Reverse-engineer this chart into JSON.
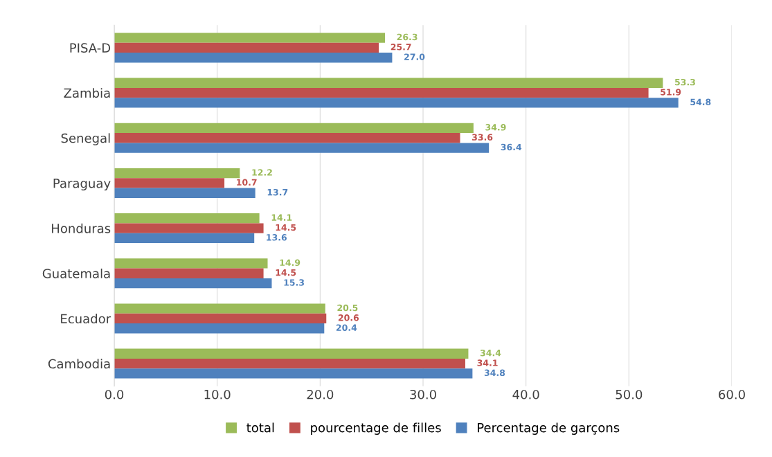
{
  "chart_data": {
    "type": "bar",
    "orientation": "horizontal",
    "categories": [
      "PISA-D",
      "Zambia",
      "Senegal",
      "Paraguay",
      "Honduras",
      "Guatemala",
      "Ecuador",
      "Cambodia"
    ],
    "series": [
      {
        "name": "total",
        "color": "#9bbb59",
        "values": [
          26.3,
          53.3,
          34.9,
          12.2,
          14.1,
          14.9,
          20.5,
          34.4
        ],
        "value_labels": [
          "26.3",
          "53.3",
          "34.9",
          "12.2",
          "14.1",
          "14.9",
          "20.5",
          "34.4"
        ]
      },
      {
        "name": "pourcentage de filles",
        "color": "#c0504d",
        "values": [
          25.7,
          51.9,
          33.6,
          10.7,
          14.5,
          14.5,
          20.6,
          34.1
        ],
        "value_labels": [
          "25.7",
          "51.9",
          "33.6",
          "10.7",
          "14.5",
          "14.5",
          "20.6",
          "34.1"
        ]
      },
      {
        "name": "Percentage de garçons",
        "color": "#4f81bd",
        "values": [
          27.0,
          54.8,
          36.4,
          13.7,
          13.6,
          15.3,
          20.4,
          34.8
        ],
        "value_labels": [
          "27.0",
          "54.8",
          "36.4",
          "13.7",
          "13.6",
          "15.3",
          "20.4",
          "34.8"
        ]
      }
    ],
    "xlim": [
      0,
      60
    ],
    "xticks": [
      {
        "value": 0,
        "label": "0.0"
      },
      {
        "value": 10,
        "label": "10.0"
      },
      {
        "value": 20,
        "label": "20.0"
      },
      {
        "value": 30,
        "label": "30.0"
      },
      {
        "value": 40,
        "label": "40.0"
      },
      {
        "value": 50,
        "label": "50.0"
      },
      {
        "value": 60,
        "label": "60.0"
      }
    ],
    "grid": "x",
    "legend": "bottom"
  }
}
